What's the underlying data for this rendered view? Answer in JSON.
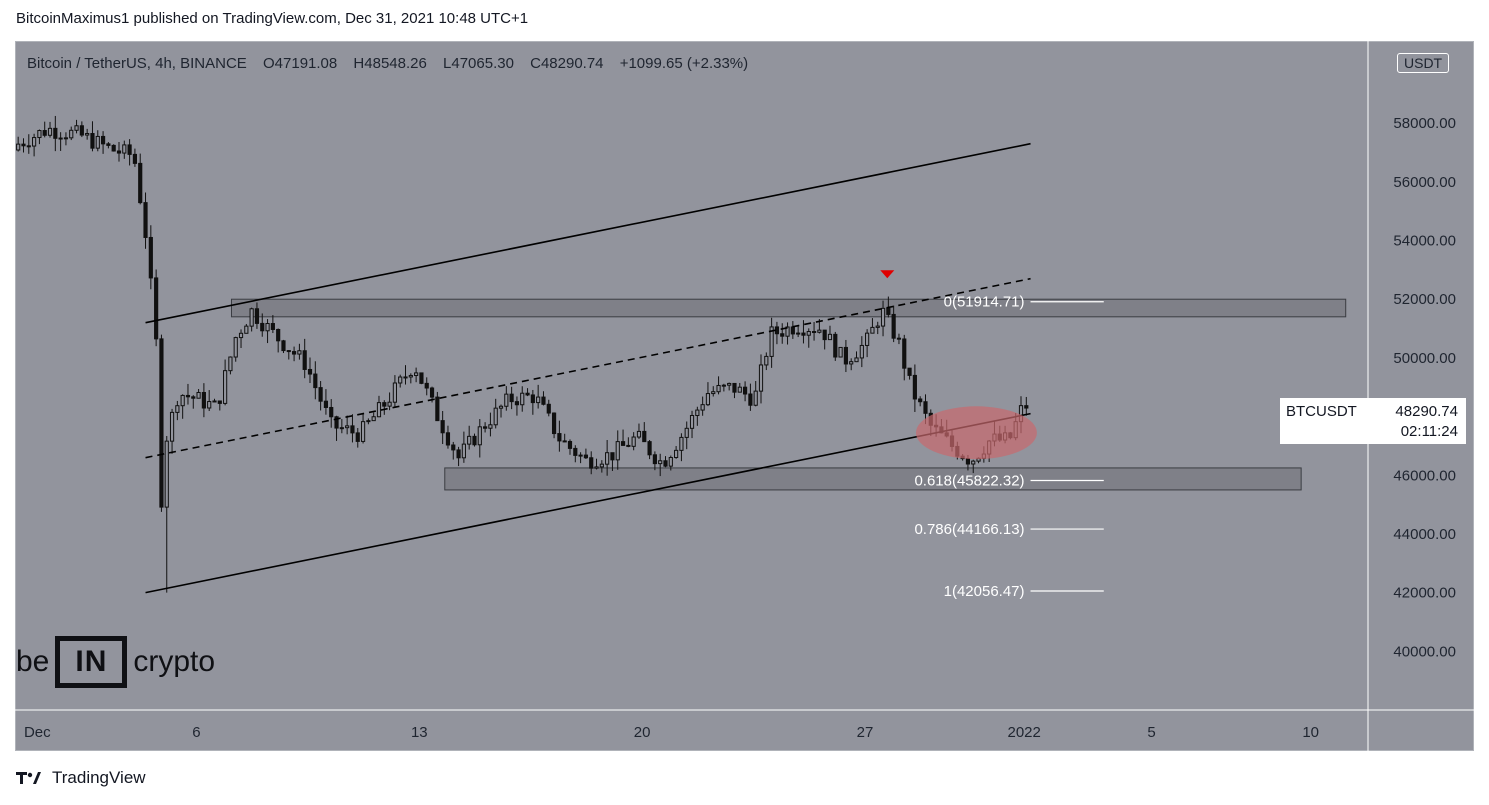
{
  "publish_line": "BitcoinMaximus1 published on TradingView.com, Dec 31, 2021 10:48 UTC+1",
  "header": {
    "symbol": "Bitcoin / TetherUS, 4h, BINANCE",
    "open_label": "O",
    "open": "47191.08",
    "high_label": "H",
    "high": "48548.26",
    "low_label": "L",
    "low": "47065.30",
    "close_label": "C",
    "close": "48290.74",
    "change": "+1099.65 (+2.33%)"
  },
  "currency_badge": "USDT",
  "price_tag": {
    "symbol": "BTCUSDT",
    "price": "48290.74",
    "countdown": "02:11:24"
  },
  "footer_brand": "TradingView",
  "watermark": {
    "left": "be",
    "middle": "IN",
    "right": "crypto"
  },
  "colors": {
    "background": "#92949d",
    "candle": "#111111",
    "zone": "#7b7d85",
    "highlight": "#c96a6e",
    "marker": "#e00000",
    "fib_line": "#ffffff"
  },
  "chart_data": {
    "type": "candlestick",
    "title": "Bitcoin / TetherUS, 4h, BINANCE",
    "y_range": [
      38000,
      60800
    ],
    "y_ticks": [
      "58000.00",
      "56000.00",
      "54000.00",
      "52000.00",
      "50000.00",
      "48000.00",
      "46000.00",
      "44000.00",
      "42000.00",
      "40000.00"
    ],
    "x_range_days_from_dec1": [
      -0.7,
      41.8
    ],
    "x_ticks": [
      {
        "label": "Dec",
        "day": 0
      },
      {
        "label": "6",
        "day": 5
      },
      {
        "label": "13",
        "day": 12
      },
      {
        "label": "20",
        "day": 19
      },
      {
        "label": "27",
        "day": 26
      },
      {
        "label": "2022",
        "day": 31
      },
      {
        "label": "5",
        "day": 35
      },
      {
        "label": "10",
        "day": 40
      }
    ],
    "price_path_keypoints": [
      [
        -0.6,
        57200
      ],
      [
        0.5,
        57800
      ],
      [
        1.5,
        57600
      ],
      [
        2.5,
        57100
      ],
      [
        3.2,
        56900
      ],
      [
        3.6,
        54000
      ],
      [
        3.9,
        50500
      ],
      [
        4.0,
        42000
      ],
      [
        4.1,
        46800
      ],
      [
        4.6,
        48800
      ],
      [
        5.2,
        48600
      ],
      [
        5.8,
        48300
      ],
      [
        6.4,
        50700
      ],
      [
        6.9,
        51600
      ],
      [
        7.6,
        50800
      ],
      [
        8.6,
        49800
      ],
      [
        9.4,
        47700
      ],
      [
        10.3,
        47400
      ],
      [
        11.2,
        48600
      ],
      [
        12.0,
        49800
      ],
      [
        12.7,
        48100
      ],
      [
        13.4,
        46600
      ],
      [
        14.2,
        47700
      ],
      [
        15.0,
        48600
      ],
      [
        15.8,
        48700
      ],
      [
        16.6,
        47200
      ],
      [
        17.4,
        46500
      ],
      [
        18.2,
        46700
      ],
      [
        19.0,
        47300
      ],
      [
        19.8,
        46400
      ],
      [
        20.5,
        47500
      ],
      [
        21.2,
        48800
      ],
      [
        22.0,
        49000
      ],
      [
        22.7,
        48600
      ],
      [
        23.2,
        50800
      ],
      [
        24.0,
        51100
      ],
      [
        24.8,
        51000
      ],
      [
        25.5,
        49900
      ],
      [
        26.2,
        50500
      ],
      [
        26.7,
        51600
      ],
      [
        27.2,
        50600
      ],
      [
        27.6,
        49000
      ],
      [
        28.2,
        47700
      ],
      [
        28.9,
        47000
      ],
      [
        29.5,
        46500
      ],
      [
        30.1,
        47200
      ],
      [
        30.7,
        47200
      ],
      [
        31.1,
        48290
      ]
    ],
    "channel_lines": [
      {
        "style": "solid",
        "from": [
          3.4,
          51200
        ],
        "to": [
          31.2,
          57300
        ]
      },
      {
        "style": "dashed",
        "from": [
          3.4,
          46600
        ],
        "to": [
          31.2,
          52700
        ]
      },
      {
        "style": "solid",
        "from": [
          3.4,
          42000
        ],
        "to": [
          31.2,
          48100
        ]
      }
    ],
    "zones": [
      {
        "from_day": 6.1,
        "to_day": 41.1,
        "low": 51400,
        "high": 52000
      },
      {
        "from_day": 12.8,
        "to_day": 39.7,
        "low": 45500,
        "high": 46250
      }
    ],
    "highlight_ellipse": {
      "center": [
        29.5,
        47450
      ],
      "rx_days": 1.9,
      "ry_price": 900
    },
    "marker": {
      "day": 26.7,
      "price": 52850,
      "shape": "triangle-down"
    },
    "fib_levels": [
      {
        "label": "0(51914.71)",
        "price": 51914.71
      },
      {
        "label": "0.618(45822.32)",
        "price": 45822.32
      },
      {
        "label": "0.786(44166.13)",
        "price": 44166.13
      },
      {
        "label": "1(42056.47)",
        "price": 42056.47
      }
    ],
    "fib_line_days": [
      31.2,
      33.5
    ]
  }
}
